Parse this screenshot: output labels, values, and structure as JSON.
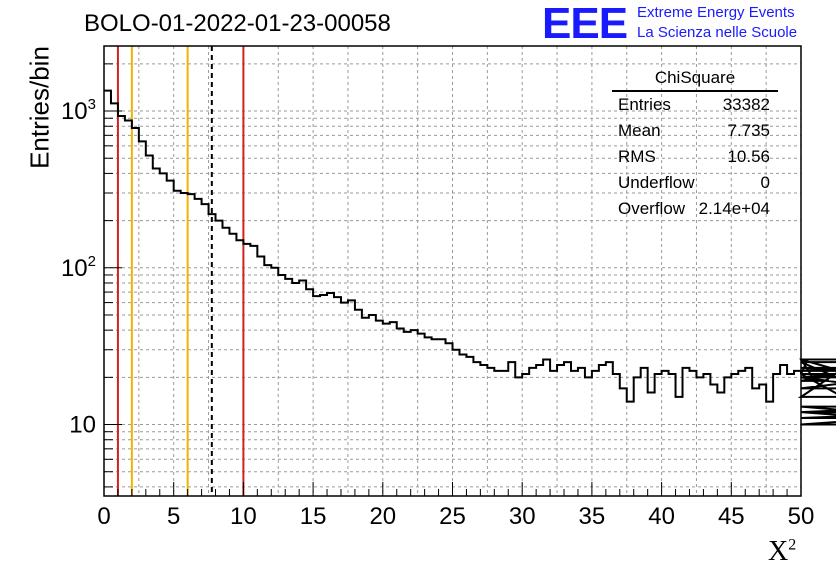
{
  "page": {
    "title": "BOLO-01-2022-01-23-00058",
    "logo_text": "EEE",
    "logo_line1": "Extreme Energy Events",
    "logo_line2": "La Scienza nelle Scuole",
    "colors": {
      "brand": "#1a1aff",
      "line_red": "#d62020",
      "line_orange": "#f0b400",
      "grid": "#9a9a9a"
    }
  },
  "stats_box": {
    "title": "ChiSquare",
    "rows": [
      {
        "key": "Entries",
        "value": "33382"
      },
      {
        "key": "Mean",
        "value": "7.735"
      },
      {
        "key": "RMS",
        "value": "10.56"
      },
      {
        "key": "Underflow",
        "value": "0"
      },
      {
        "key": "Overflow",
        "value": "2.14e+04"
      }
    ]
  },
  "chart_data": {
    "type": "bar",
    "histogram_style": "step",
    "xlabel": "X",
    "xlabel_superscript": "2",
    "ylabel": "Entries/bin",
    "x_scale": "linear",
    "y_scale": "log",
    "xlim": [
      0,
      50
    ],
    "ylim": [
      3.5,
      2600
    ],
    "grid": true,
    "bin_width": 0.5,
    "x_ticks": [
      0,
      5,
      10,
      15,
      20,
      25,
      30,
      35,
      40,
      45,
      50
    ],
    "x_tick_labels": [
      "0",
      "5",
      "10",
      "15",
      "20",
      "25",
      "30",
      "35",
      "40",
      "45",
      "50"
    ],
    "y_ticks": [
      10,
      100,
      1000
    ],
    "y_tick_labels": [
      "10",
      "10^2",
      "10^3"
    ],
    "bin_counts": [
      1350,
      1120,
      930,
      870,
      780,
      640,
      520,
      430,
      400,
      360,
      310,
      300,
      295,
      275,
      255,
      220,
      200,
      180,
      165,
      150,
      142,
      138,
      118,
      104,
      100,
      90,
      85,
      80,
      83,
      73,
      66,
      67,
      69,
      65,
      60,
      62,
      54,
      48,
      50,
      46,
      44,
      45,
      41,
      39,
      40,
      38,
      36,
      35,
      35,
      33,
      30,
      28,
      27,
      25,
      24,
      23,
      22,
      22,
      25,
      20,
      21,
      23,
      24,
      26,
      22,
      24,
      25,
      22,
      23,
      20,
      22,
      24,
      25,
      21,
      17,
      14,
      20,
      23,
      16,
      21,
      22,
      21,
      15,
      23,
      22,
      20,
      21,
      18,
      16,
      20,
      21,
      22,
      23,
      17,
      18,
      14,
      21,
      24,
      21,
      22,
      21,
      26,
      19,
      20,
      19,
      21,
      15,
      15,
      26,
      20,
      20,
      20,
      17,
      20,
      23,
      22,
      25,
      12,
      12,
      13,
      11,
      12,
      12,
      12,
      10,
      12,
      10
    ],
    "vertical_lines": [
      {
        "x": 1.0,
        "style": "solid",
        "color": "#d62020"
      },
      {
        "x": 2.0,
        "style": "solid",
        "color": "#f0b400"
      },
      {
        "x": 6.0,
        "style": "solid",
        "color": "#f0b400"
      },
      {
        "x": 7.735,
        "style": "dashed",
        "color": "#000000"
      },
      {
        "x": 10.0,
        "style": "solid",
        "color": "#d62020"
      }
    ]
  }
}
